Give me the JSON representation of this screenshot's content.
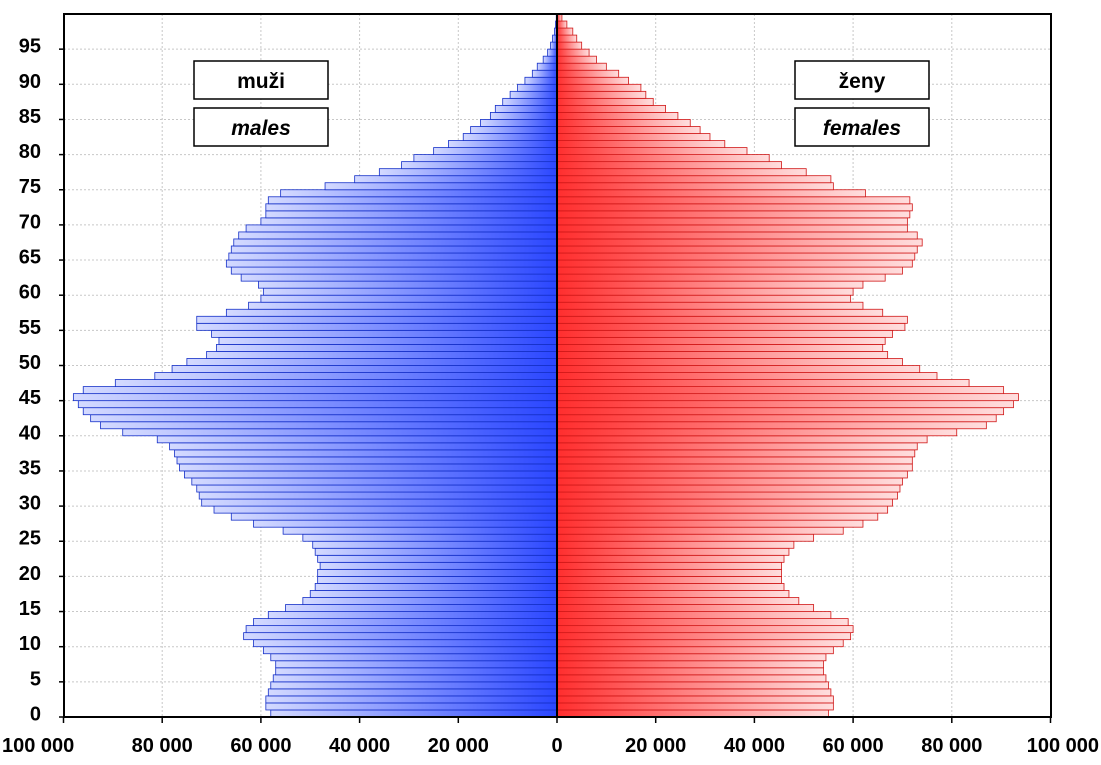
{
  "chart_data": {
    "type": "bar",
    "orientation": "horizontal",
    "subtype": "population-pyramid",
    "title": "",
    "xlabel": "",
    "ylabel": "",
    "x_range": [
      -100000,
      100000
    ],
    "y_range": [
      0,
      100
    ],
    "x_ticks": [
      -100000,
      -80000,
      -60000,
      -40000,
      -20000,
      0,
      20000,
      40000,
      60000,
      80000,
      100000
    ],
    "x_tick_labels": [
      "100 000",
      "80 000",
      "60 000",
      "40 000",
      "20 000",
      "0",
      "20 000",
      "40 000",
      "60 000",
      "80 000",
      "100 000"
    ],
    "y_ticks": [
      0,
      5,
      10,
      15,
      20,
      25,
      30,
      35,
      40,
      45,
      50,
      55,
      60,
      65,
      70,
      75,
      80,
      85,
      90,
      95
    ],
    "y_tick_labels": [
      "0",
      "5",
      "10",
      "15",
      "20",
      "25",
      "30",
      "35",
      "40",
      "45",
      "50",
      "55",
      "60",
      "65",
      "70",
      "75",
      "80",
      "85",
      "90",
      "95"
    ],
    "grid": true,
    "legend_placement": "top-left and top-right boxes",
    "ages": [
      0,
      1,
      2,
      3,
      4,
      5,
      6,
      7,
      8,
      9,
      10,
      11,
      12,
      13,
      14,
      15,
      16,
      17,
      18,
      19,
      20,
      21,
      22,
      23,
      24,
      25,
      26,
      27,
      28,
      29,
      30,
      31,
      32,
      33,
      34,
      35,
      36,
      37,
      38,
      39,
      40,
      41,
      42,
      43,
      44,
      45,
      46,
      47,
      48,
      49,
      50,
      51,
      52,
      53,
      54,
      55,
      56,
      57,
      58,
      59,
      60,
      61,
      62,
      63,
      64,
      65,
      66,
      67,
      68,
      69,
      70,
      71,
      72,
      73,
      74,
      75,
      76,
      77,
      78,
      79,
      80,
      81,
      82,
      83,
      84,
      85,
      86,
      87,
      88,
      89,
      90,
      91,
      92,
      93,
      94,
      95,
      96,
      97,
      98,
      99
    ],
    "series": [
      {
        "name": "muži",
        "name_en": "males",
        "side": "left",
        "color": "#1a3cff",
        "values": [
          58000,
          59000,
          59000,
          58500,
          58000,
          57500,
          57000,
          57000,
          58000,
          59500,
          61500,
          63500,
          63000,
          61500,
          58500,
          55000,
          51500,
          50000,
          49000,
          48500,
          48500,
          48000,
          48500,
          49000,
          49500,
          51500,
          55500,
          61500,
          66000,
          69500,
          72000,
          72500,
          73000,
          74000,
          75500,
          76500,
          77000,
          77500,
          78500,
          81000,
          88000,
          92500,
          94500,
          96000,
          97000,
          98000,
          96000,
          89500,
          81500,
          78000,
          75000,
          71000,
          69000,
          68500,
          70000,
          73000,
          73000,
          67000,
          62500,
          60000,
          59500,
          60500,
          64000,
          66000,
          67000,
          66500,
          66000,
          65500,
          64500,
          63000,
          60000,
          59000,
          59000,
          58500,
          56000,
          47000,
          41000,
          36000,
          31500,
          29000,
          25000,
          22000,
          19000,
          17500,
          15500,
          13500,
          12500,
          11000,
          9500,
          8000,
          6500,
          5000,
          4000,
          2800,
          1900,
          1300,
          900,
          500,
          300,
          150
        ]
      },
      {
        "name": "ženy",
        "name_en": "females",
        "side": "right",
        "color": "#ff2b2b",
        "values": [
          55000,
          56000,
          56000,
          55500,
          55000,
          54500,
          54000,
          54000,
          54500,
          56000,
          58000,
          59500,
          60000,
          59000,
          55500,
          52000,
          49000,
          47000,
          46000,
          45500,
          45500,
          45500,
          46000,
          47000,
          48000,
          52000,
          58000,
          62000,
          65000,
          67000,
          68000,
          69000,
          69500,
          70000,
          71000,
          72000,
          72000,
          72500,
          73000,
          75000,
          81000,
          87000,
          89000,
          90500,
          92500,
          93500,
          90500,
          83500,
          77000,
          73500,
          70000,
          67000,
          66000,
          66500,
          68000,
          70500,
          71000,
          66000,
          62000,
          59500,
          60000,
          62000,
          66500,
          70000,
          72000,
          72500,
          73000,
          74000,
          73000,
          71000,
          71000,
          71500,
          72000,
          71500,
          62500,
          56000,
          55500,
          50500,
          45500,
          43000,
          38500,
          34000,
          31000,
          29000,
          27000,
          24500,
          22000,
          19500,
          18000,
          17000,
          14500,
          12500,
          10000,
          8000,
          6500,
          5000,
          4000,
          3200,
          2000,
          1000
        ]
      }
    ]
  },
  "legend": {
    "left": {
      "line1": "muži",
      "line2": "males"
    },
    "right": {
      "line1": "ženy",
      "line2": "females"
    }
  },
  "colors": {
    "male_dark": "#1a3cff",
    "male_light": "#c8d0ff",
    "female_dark": "#ff2b2b",
    "female_light": "#ffd0d0",
    "bar_edge_male": "#1530c8",
    "bar_edge_female": "#d01818",
    "grid": "#c8c8c8"
  }
}
